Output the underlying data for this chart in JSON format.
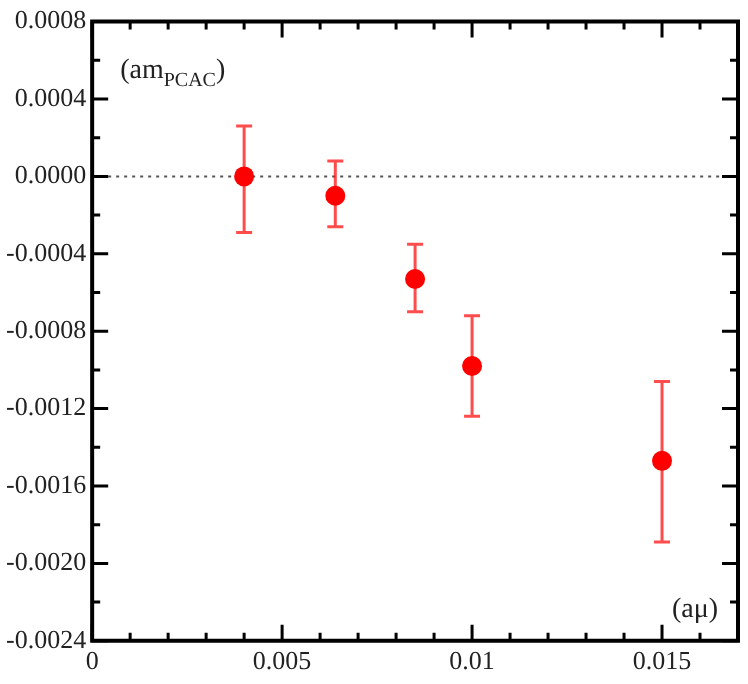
{
  "chart_data": {
    "type": "scatter",
    "xlabel": "(aμ)",
    "ylabel": "(am$_{PCAC}$)",
    "x": [
      0.004,
      0.0064,
      0.0085,
      0.01,
      0.015
    ],
    "series": [
      {
        "color": "#ff0000",
        "values": [
          0,
          -0.0001,
          -0.00053,
          -0.00098,
          -0.00147
        ],
        "errors": [
          [
            -0.00029,
            0.00026
          ],
          [
            -0.00026,
            8e-05
          ],
          [
            -0.0007,
            -0.00035
          ],
          [
            -0.00124,
            -0.00072
          ],
          [
            -0.00189,
            -0.00106
          ]
        ]
      }
    ],
    "marker": "circle",
    "grid": false,
    "legend": false,
    "xlim": [
      0,
      0.017
    ],
    "xticks": [
      {
        "value": 0,
        "label": "0"
      },
      {
        "value": 0.001,
        "label": null
      },
      {
        "value": 0.002,
        "label": null
      },
      {
        "value": 0.003,
        "label": null
      },
      {
        "value": 0.004,
        "label": null
      },
      {
        "value": 0.005,
        "label": "0.005"
      },
      {
        "value": 0.006,
        "label": null
      },
      {
        "value": 0.007,
        "label": null
      },
      {
        "value": 0.008,
        "label": null
      },
      {
        "value": 0.009,
        "label": null
      },
      {
        "value": 0.01,
        "label": "0.01"
      },
      {
        "value": 0.011,
        "label": null
      },
      {
        "value": 0.012,
        "label": null
      },
      {
        "value": 0.013,
        "label": null
      },
      {
        "value": 0.014,
        "label": null
      },
      {
        "value": 0.015,
        "label": "0.015"
      },
      {
        "value": 0.016,
        "label": null
      }
    ],
    "ylim": [
      -0.0024,
      0.0008
    ],
    "yticks": [
      {
        "value": -0.0024,
        "label": "-0.0024"
      },
      {
        "value": -0.0022,
        "label": null
      },
      {
        "value": -0.002,
        "label": "-0.0020"
      },
      {
        "value": -0.0018,
        "label": null
      },
      {
        "value": -0.0016,
        "label": "-0.0016"
      },
      {
        "value": -0.0014,
        "label": null
      },
      {
        "value": -0.0012,
        "label": "-0.0012"
      },
      {
        "value": -0.001,
        "label": null
      },
      {
        "value": -0.0008,
        "label": "-0.0008"
      },
      {
        "value": -0.0006,
        "label": null
      },
      {
        "value": -0.0004,
        "label": "-0.0004"
      },
      {
        "value": -0.0002,
        "label": null
      },
      {
        "value": 0,
        "label": "0.0000"
      },
      {
        "value": 0.0002,
        "label": null
      },
      {
        "value": 0.0004,
        "label": "0.0004"
      },
      {
        "value": 0.0006,
        "label": null
      },
      {
        "value": 0.0008,
        "label": "0.0008"
      }
    ],
    "ref_lines": [
      {
        "axis": "y",
        "value": 0,
        "line_style": "dotted",
        "color": "#555555"
      }
    ]
  }
}
